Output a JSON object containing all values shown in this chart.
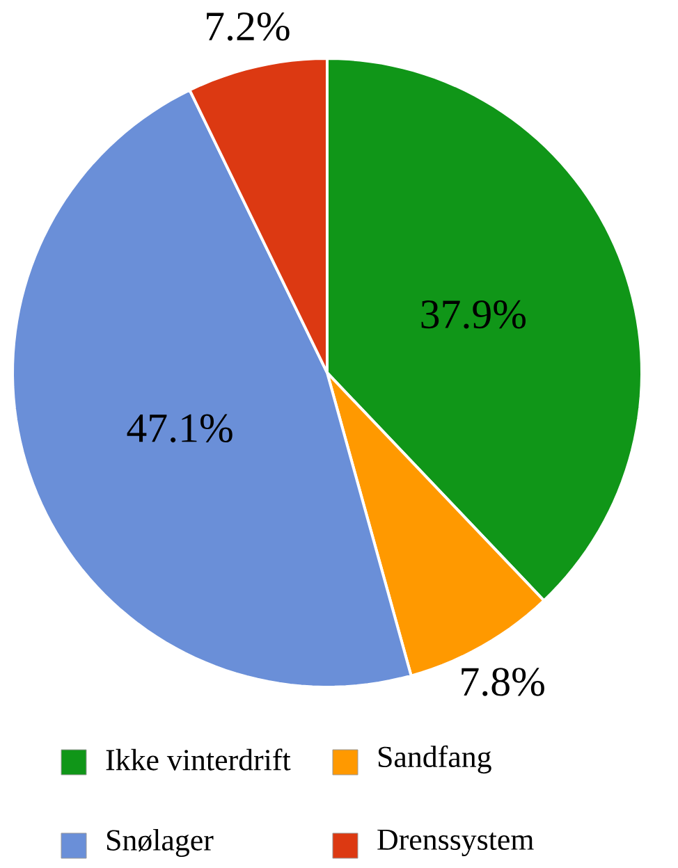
{
  "chart_data": {
    "type": "pie",
    "categories": [
      "Ikke vinterdrift",
      "Sandfang",
      "Snølager",
      "Drenssystem"
    ],
    "values": [
      37.9,
      7.8,
      47.1,
      7.2
    ],
    "colors": [
      "#109618",
      "#ff9900",
      "#6a8fd8",
      "#dc3912"
    ],
    "value_labels": [
      "37.9%",
      "7.8%",
      "47.1%",
      "7.2%"
    ],
    "legend": "bottom"
  }
}
